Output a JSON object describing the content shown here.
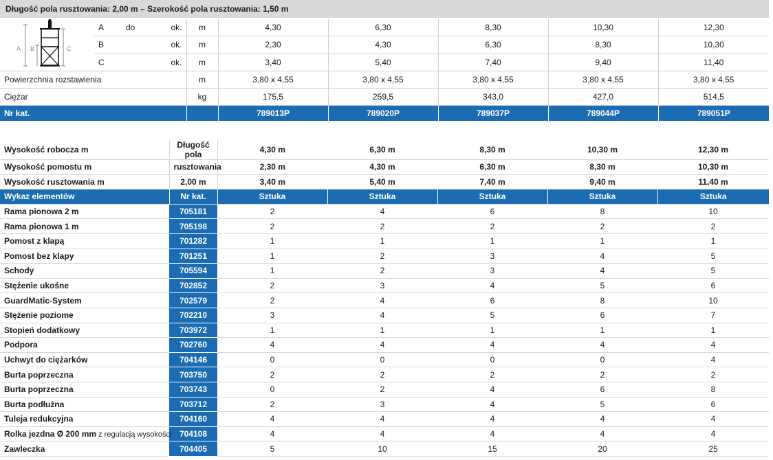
{
  "header": "Długość pola rusztowania: 2,00 m – Szerokość pola rusztowania: 1,50 m",
  "top": {
    "dims": [
      {
        "letter": "A",
        "do": "do",
        "ok": "ok.",
        "unit": "m",
        "values": [
          "4,30",
          "6,30",
          "8,30",
          "10,30",
          "12,30"
        ]
      },
      {
        "letter": "B",
        "do": "",
        "ok": "ok.",
        "unit": "m",
        "values": [
          "2,30",
          "4,30",
          "6,30",
          "8,30",
          "10,30"
        ]
      },
      {
        "letter": "C",
        "do": "",
        "ok": "ok.",
        "unit": "m",
        "values": [
          "3,40",
          "5,40",
          "7,40",
          "9,40",
          "11,40"
        ]
      }
    ],
    "area": {
      "label": "Powierzchnia rozstawienia",
      "unit": "m",
      "values": [
        "3,80 x 4,55",
        "3,80 x 4,55",
        "3,80 x 4,55",
        "3,80 x 4,55",
        "3,80 x 4,55"
      ]
    },
    "weight": {
      "label": "Ciężar",
      "unit": "kg",
      "values": [
        "175,5",
        "259,5",
        "343,0",
        "427,0",
        "514,5"
      ]
    },
    "catalog": {
      "label": "Nr kat.",
      "values": [
        "789013P",
        "789020P",
        "789037P",
        "789044P",
        "789051P"
      ]
    },
    "diagram_labels": {
      "a": "A",
      "b": "B",
      "c": "C"
    }
  },
  "heights": {
    "mid_label": [
      "Długość pola",
      "rusztowania",
      "2,00 m"
    ],
    "rows": [
      {
        "label": "Wysokość robocza m",
        "values": [
          "4,30 m",
          "6,30 m",
          "8,30 m",
          "10,30 m",
          "12,30 m"
        ]
      },
      {
        "label": "Wysokość pomostu m",
        "values": [
          "2,30 m",
          "4,30 m",
          "6,30 m",
          "8,30 m",
          "10,30 m"
        ]
      },
      {
        "label": "Wysokość rusztowania m",
        "values": [
          "3,40 m",
          "5,40 m",
          "7,40 m",
          "9,40 m",
          "11,40 m"
        ]
      }
    ]
  },
  "list_header": {
    "label": "Wykaz elementów",
    "nr": "Nr kat.",
    "cols": [
      "Sztuka",
      "Sztuka",
      "Sztuka",
      "Sztuka",
      "Sztuka"
    ]
  },
  "items": [
    {
      "name": "Rama pionowa 2 m",
      "extra": "",
      "nr": "705181",
      "q": [
        "2",
        "4",
        "6",
        "8",
        "10"
      ]
    },
    {
      "name": "Rama pionowa 1 m",
      "extra": "",
      "nr": "705198",
      "q": [
        "2",
        "2",
        "2",
        "2",
        "2"
      ]
    },
    {
      "name": "Pomost z klapą",
      "extra": "",
      "nr": "701282",
      "q": [
        "1",
        "1",
        "1",
        "1",
        "1"
      ]
    },
    {
      "name": "Pomost bez klapy",
      "extra": "",
      "nr": "701251",
      "q": [
        "1",
        "2",
        "3",
        "4",
        "5"
      ]
    },
    {
      "name": "Schody",
      "extra": "",
      "nr": "705594",
      "q": [
        "1",
        "2",
        "3",
        "4",
        "5"
      ]
    },
    {
      "name": "Stężenie ukośne",
      "extra": "",
      "nr": "702852",
      "q": [
        "2",
        "3",
        "4",
        "5",
        "6"
      ]
    },
    {
      "name": "GuardMatic-System",
      "extra": "",
      "nr": "702579",
      "q": [
        "2",
        "4",
        "6",
        "8",
        "10"
      ]
    },
    {
      "name": "Stężenie poziome",
      "extra": "",
      "nr": "702210",
      "q": [
        "3",
        "4",
        "5",
        "6",
        "7"
      ]
    },
    {
      "name": "Stopień dodatkowy",
      "extra": "",
      "nr": "703972",
      "q": [
        "1",
        "1",
        "1",
        "1",
        "1"
      ]
    },
    {
      "name": "Podpora",
      "extra": "",
      "nr": "702760",
      "q": [
        "4",
        "4",
        "4",
        "4",
        "4"
      ]
    },
    {
      "name": "Uchwyt do ciężarków",
      "extra": "",
      "nr": "704146",
      "q": [
        "0",
        "0",
        "0",
        "0",
        "4"
      ]
    },
    {
      "name": "Burta poprzeczna",
      "extra": "",
      "nr": "703750",
      "q": [
        "2",
        "2",
        "2",
        "2",
        "2"
      ]
    },
    {
      "name": "Burta poprzeczna",
      "extra": "",
      "nr": "703743",
      "q": [
        "0",
        "2",
        "4",
        "6",
        "8"
      ]
    },
    {
      "name": "Burta podłużna",
      "extra": "",
      "nr": "703712",
      "q": [
        "2",
        "3",
        "4",
        "5",
        "6"
      ]
    },
    {
      "name": "Tuleja redukcyjna",
      "extra": "",
      "nr": "704160",
      "q": [
        "4",
        "4",
        "4",
        "4",
        "4"
      ]
    },
    {
      "name": "Rolka jezdna Ø 200 mm",
      "extra": " z regulacją wysokości",
      "nr": "704108",
      "q": [
        "4",
        "4",
        "4",
        "4",
        "4"
      ]
    },
    {
      "name": "Zawleczka",
      "extra": "",
      "nr": "704405",
      "q": [
        "5",
        "10",
        "15",
        "20",
        "25"
      ]
    }
  ]
}
